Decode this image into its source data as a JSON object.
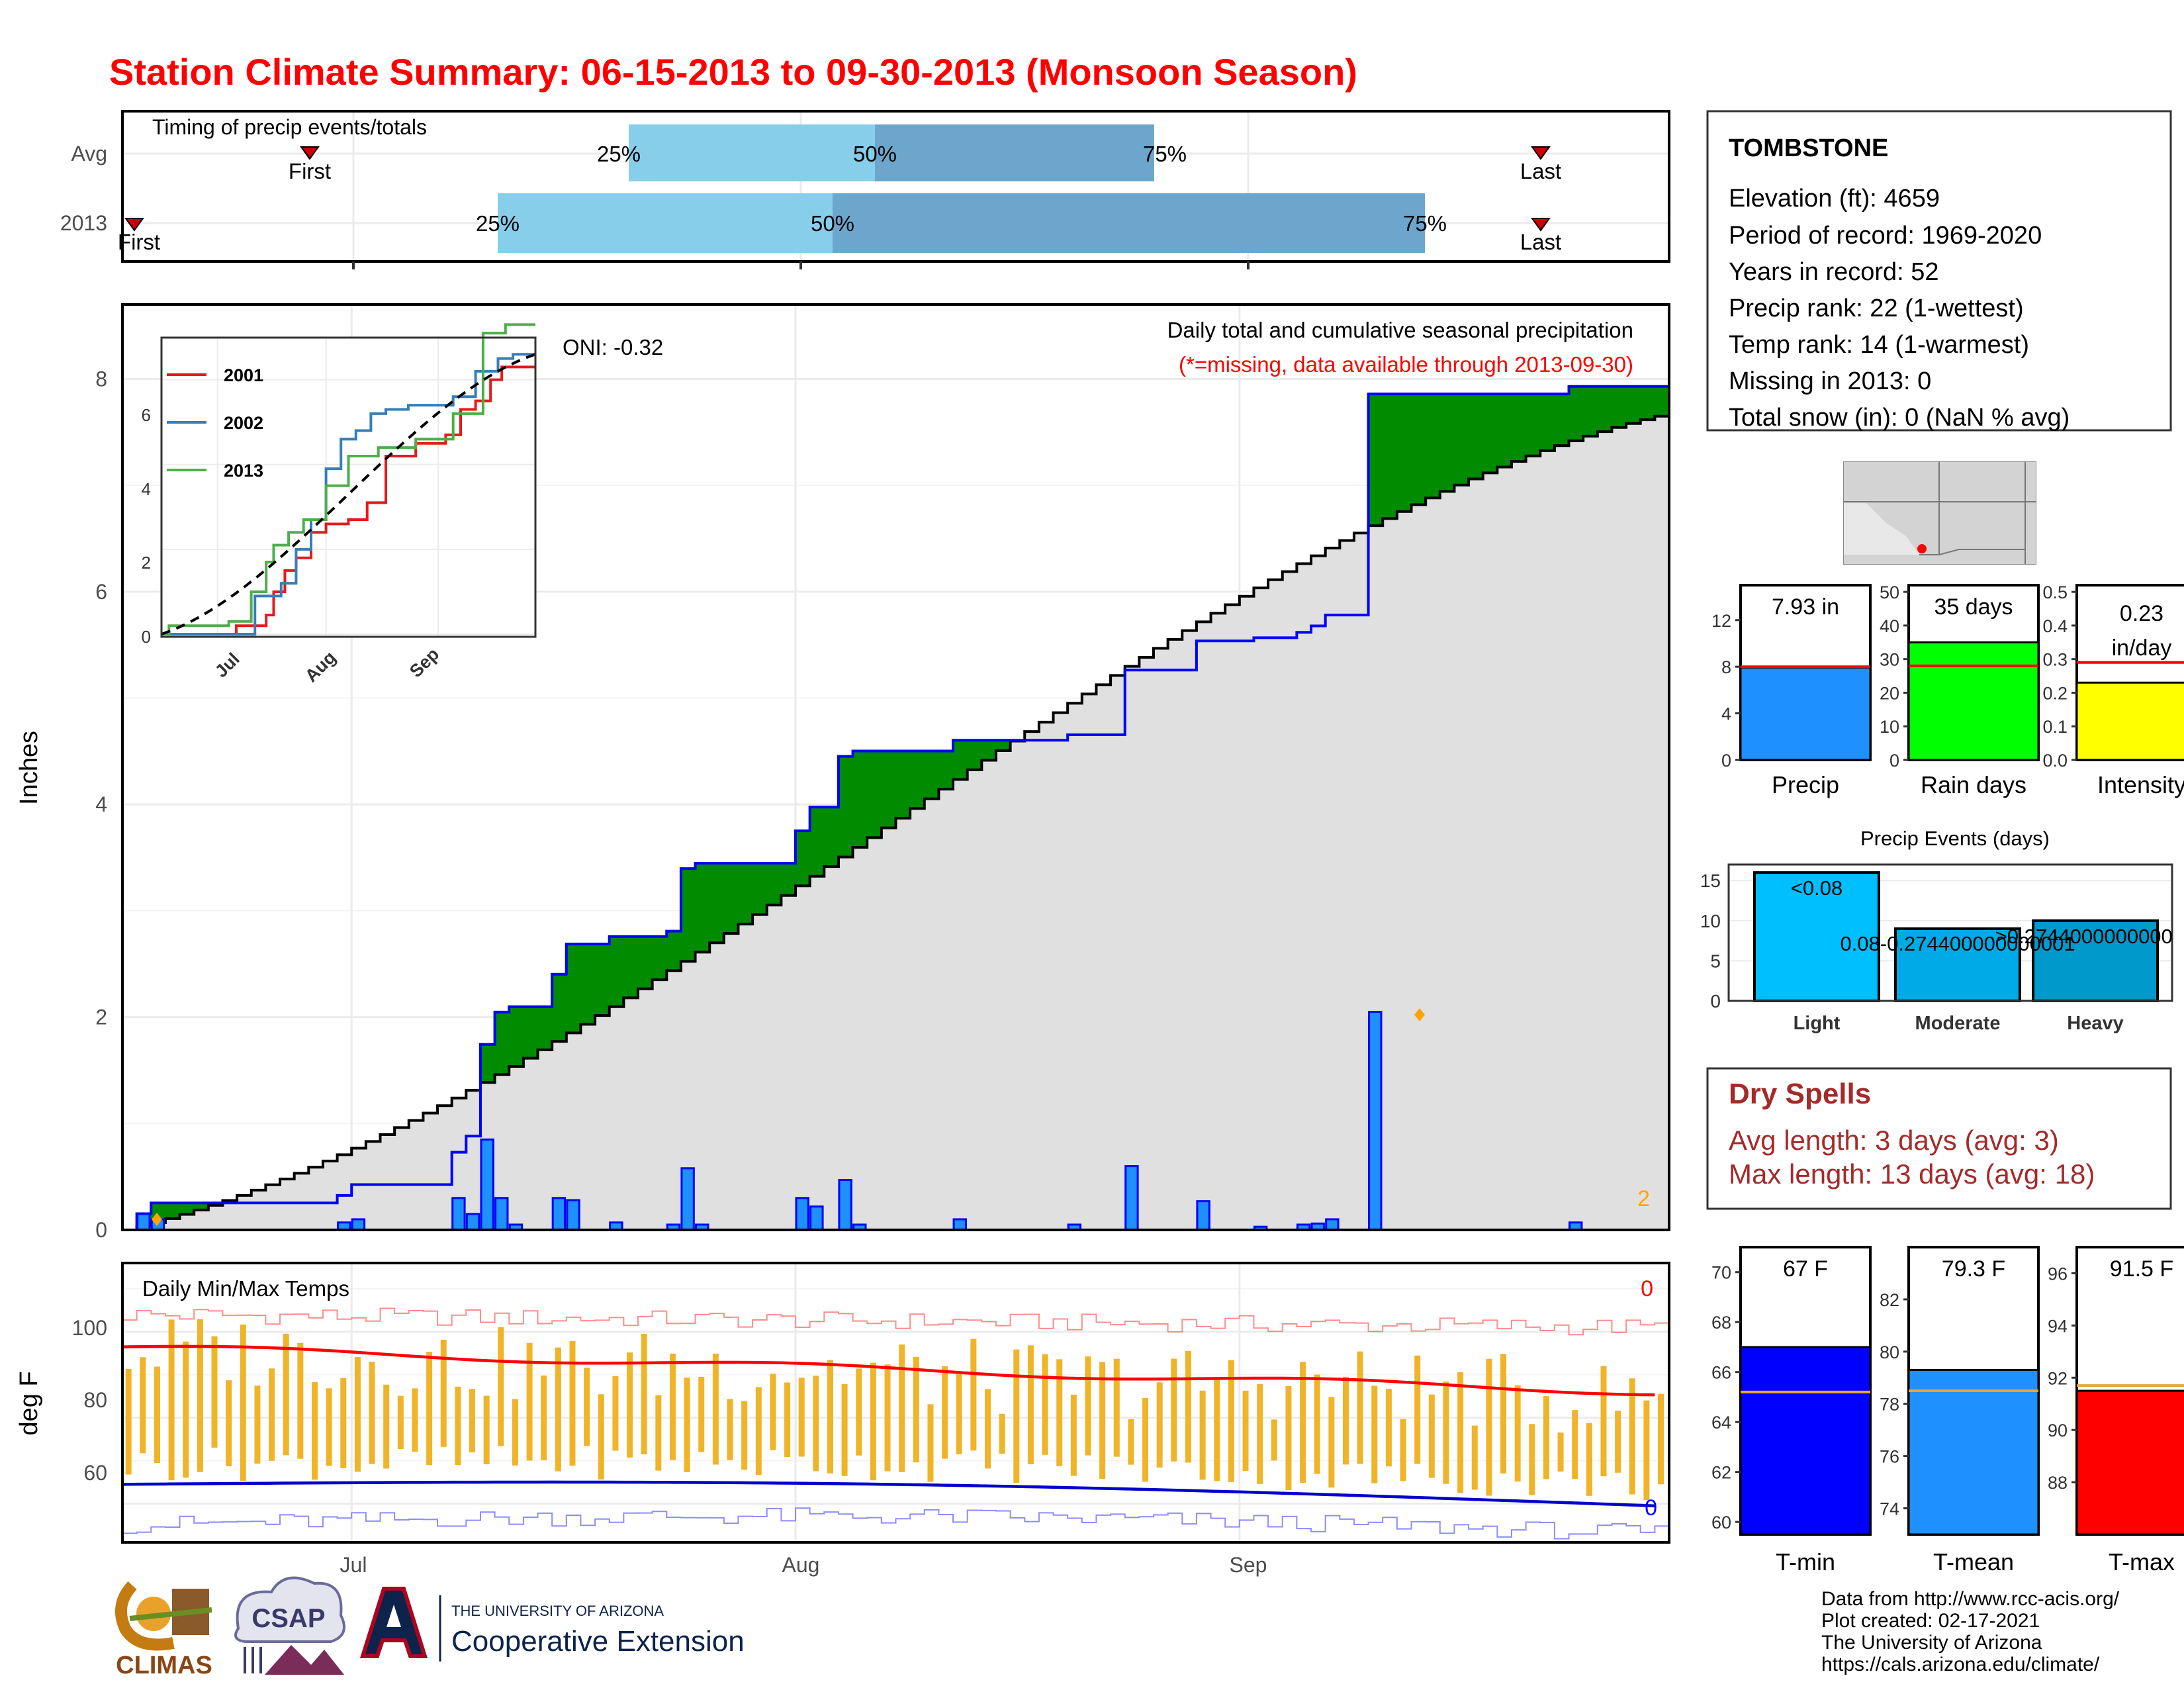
{
  "title": "Station Climate Summary: 06-15-2013 to 09-30-2013 (Monsoon Season)",
  "colors": {
    "title": "#ff0000",
    "green_surplus": "#008b00",
    "brown_deficit": "#8b5a00",
    "cumulative_fill": "#e0e0e0",
    "daily_bar": "#1e90ff",
    "bar_outline": "#0000ff",
    "temp_bar": "#f0b429",
    "tmax": "#ff0000",
    "tmin": "#0000cd",
    "dryspells": "#a52a2a"
  },
  "timing": {
    "title": "Timing of precip events/totals",
    "rows": [
      "Avg",
      "2013"
    ],
    "avg": {
      "first_label": "First",
      "last_label": "Last",
      "p25": "25%",
      "p50": "50%",
      "p75": "75%"
    },
    "y2013": {
      "first_label": "First",
      "last_label": "Last",
      "p25": "25%",
      "p50": "50%",
      "p75": "75%"
    }
  },
  "main": {
    "ylabel": "Inches",
    "yticks": [
      "0",
      "2",
      "4",
      "6",
      "8"
    ],
    "xticks": [
      "Jul",
      "Aug",
      "Sep"
    ],
    "oni": "ONI: -0.32",
    "caption": "Daily total and cumulative seasonal precipitation",
    "missing_note": "(*=missing, data available through 2013-09-30)",
    "corner_count": "2"
  },
  "inset": {
    "legend": [
      "2001",
      "2002",
      "2013"
    ],
    "legend_colors": [
      "#e41a1c",
      "#377eb8",
      "#4daf4a"
    ],
    "yticks": [
      "0",
      "2",
      "4",
      "6"
    ],
    "xticks": [
      "Jul",
      "Aug",
      "Sep"
    ]
  },
  "temps": {
    "title": "Daily Min/Max Temps",
    "ylabel": "deg F",
    "yticks": [
      "60",
      "80",
      "100"
    ],
    "count_top": "0",
    "count_bottom": "0"
  },
  "station": {
    "name": "TOMBSTONE",
    "lines": [
      "Elevation (ft): 4659",
      "Period of record: 1969-2020",
      "Years in record: 52",
      "Precip rank: 22 (1-wettest)",
      "Temp rank: 14 (1-warmest)",
      "Missing in 2013: 0",
      "Total snow (in): 0 (NaN % avg)"
    ]
  },
  "summary_bars": [
    {
      "label": "Precip",
      "value_text": "7.93 in",
      "value": 7.93,
      "avg": 8.0,
      "ymax": 15,
      "ticks": [
        "0",
        "4",
        "8",
        "12"
      ],
      "color": "#1e90ff"
    },
    {
      "label": "Rain days",
      "value_text": "35 days",
      "value": 35,
      "avg": 28,
      "ymax": 52,
      "ticks": [
        "0",
        "10",
        "20",
        "30",
        "40",
        "50"
      ],
      "color": "#00ff00"
    },
    {
      "label": "Intensity",
      "value_text_1": "0.23",
      "value_text_2": "in/day",
      "value": 0.23,
      "avg": 0.29,
      "ymax": 0.52,
      "ticks": [
        "0.0",
        "0.1",
        "0.2",
        "0.3",
        "0.4",
        "0.5"
      ],
      "color": "#ffff00"
    }
  ],
  "precip_events": {
    "title": "Precip Events (days)",
    "categories": [
      "Light",
      "Moderate",
      "Heavy"
    ],
    "values": [
      16,
      9,
      10
    ],
    "labels": [
      "<0.08",
      "0.08-0.274400000000001",
      ">0.274400000000001"
    ],
    "yticks": [
      "0",
      "5",
      "10",
      "15"
    ]
  },
  "dry_spells": {
    "title": "Dry Spells",
    "avg": "Avg length: 3 days (avg: 3)",
    "max": "Max length: 13 days (avg: 18)"
  },
  "temp_bars": [
    {
      "label": "T-min",
      "value_text": "67 F",
      "value": 67,
      "avg": 65.2,
      "ymin": 59.5,
      "ymax": 71,
      "ticks": [
        "60",
        "62",
        "64",
        "66",
        "68",
        "70"
      ],
      "color": "#0000ff"
    },
    {
      "label": "T-mean",
      "value_text": "79.3 F",
      "value": 79.3,
      "avg": 78.5,
      "ymin": 73,
      "ymax": 84,
      "ticks": [
        "74",
        "76",
        "78",
        "80",
        "82"
      ],
      "color": "#1e90ff"
    },
    {
      "label": "T-max",
      "value_text": "91.5 F",
      "value": 91.5,
      "avg": 91.7,
      "ymin": 86,
      "ymax": 97,
      "ticks": [
        "88",
        "90",
        "92",
        "94",
        "96"
      ],
      "color": "#ff0000"
    }
  ],
  "logos": {
    "climas": "CLIMAS",
    "csap": "CSAP",
    "ua_line1": "THE UNIVERSITY OF ARIZONA",
    "ua_line2": "Cooperative Extension"
  },
  "footer": [
    "Data from http://www.rcc-acis.org/",
    "Plot created: 02-17-2021",
    "The University of Arizona",
    "https://cals.arizona.edu/climate/"
  ],
  "chart_data": [
    {
      "type": "bar",
      "title": "Timing of precip events/totals",
      "categories": [
        "Avg",
        "2013"
      ],
      "x_range": [
        "2013-06-15",
        "2013-09-30"
      ],
      "series": [
        {
          "name": "Avg",
          "first": "2013-07-01",
          "p25": "2013-07-24",
          "p50": "2013-08-10",
          "p75": "2013-08-28",
          "last": "2013-09-25"
        },
        {
          "name": "2013",
          "first": "2013-06-15",
          "p25": "2013-07-10",
          "p50": "2013-08-07",
          "p75": "2013-09-08",
          "last": "2013-09-25"
        }
      ]
    },
    {
      "type": "bar",
      "title": "Daily total and cumulative seasonal precipitation",
      "ylabel": "Inches",
      "ylim": [
        0,
        8.7
      ],
      "x_range": [
        "2013-06-15",
        "2013-09-30"
      ],
      "daily_precip": [
        [
          "2013-06-16",
          0.15
        ],
        [
          "2013-06-17",
          0.1
        ],
        [
          "2013-06-30",
          0.07
        ],
        [
          "2013-07-01",
          0.1
        ],
        [
          "2013-07-08",
          0.3
        ],
        [
          "2013-07-09",
          0.15
        ],
        [
          "2013-07-10",
          0.85
        ],
        [
          "2013-07-11",
          0.3
        ],
        [
          "2013-07-12",
          0.05
        ],
        [
          "2013-07-15",
          0.3
        ],
        [
          "2013-07-16",
          0.28
        ],
        [
          "2013-07-19",
          0.07
        ],
        [
          "2013-07-23",
          0.05
        ],
        [
          "2013-07-24",
          0.58
        ],
        [
          "2013-07-25",
          0.05
        ],
        [
          "2013-08-01",
          0.3
        ],
        [
          "2013-08-02",
          0.22
        ],
        [
          "2013-08-04",
          0.47
        ],
        [
          "2013-08-05",
          0.05
        ],
        [
          "2013-08-12",
          0.1
        ],
        [
          "2013-08-20",
          0.05
        ],
        [
          "2013-08-24",
          0.6
        ],
        [
          "2013-08-29",
          0.27
        ],
        [
          "2013-09-02",
          0.03
        ],
        [
          "2013-09-05",
          0.05
        ],
        [
          "2013-09-06",
          0.06
        ],
        [
          "2013-09-07",
          0.1
        ],
        [
          "2013-09-10",
          2.05
        ],
        [
          "2013-09-24",
          0.07
        ]
      ]
    },
    {
      "type": "line",
      "title": "Daily Min/Max Temps",
      "ylabel": "deg F",
      "ylim": [
        51,
        116
      ],
      "x_range": [
        "2013-06-15",
        "2013-09-30"
      ],
      "avg_tmax_start_end": [
        96.5,
        86.0
      ],
      "avg_tmin_start_end": [
        64.5,
        59.5
      ]
    },
    {
      "type": "bar",
      "title": "Precip Events (days)",
      "categories": [
        "Light",
        "Moderate",
        "Heavy"
      ],
      "values": [
        16,
        9,
        10
      ]
    }
  ]
}
